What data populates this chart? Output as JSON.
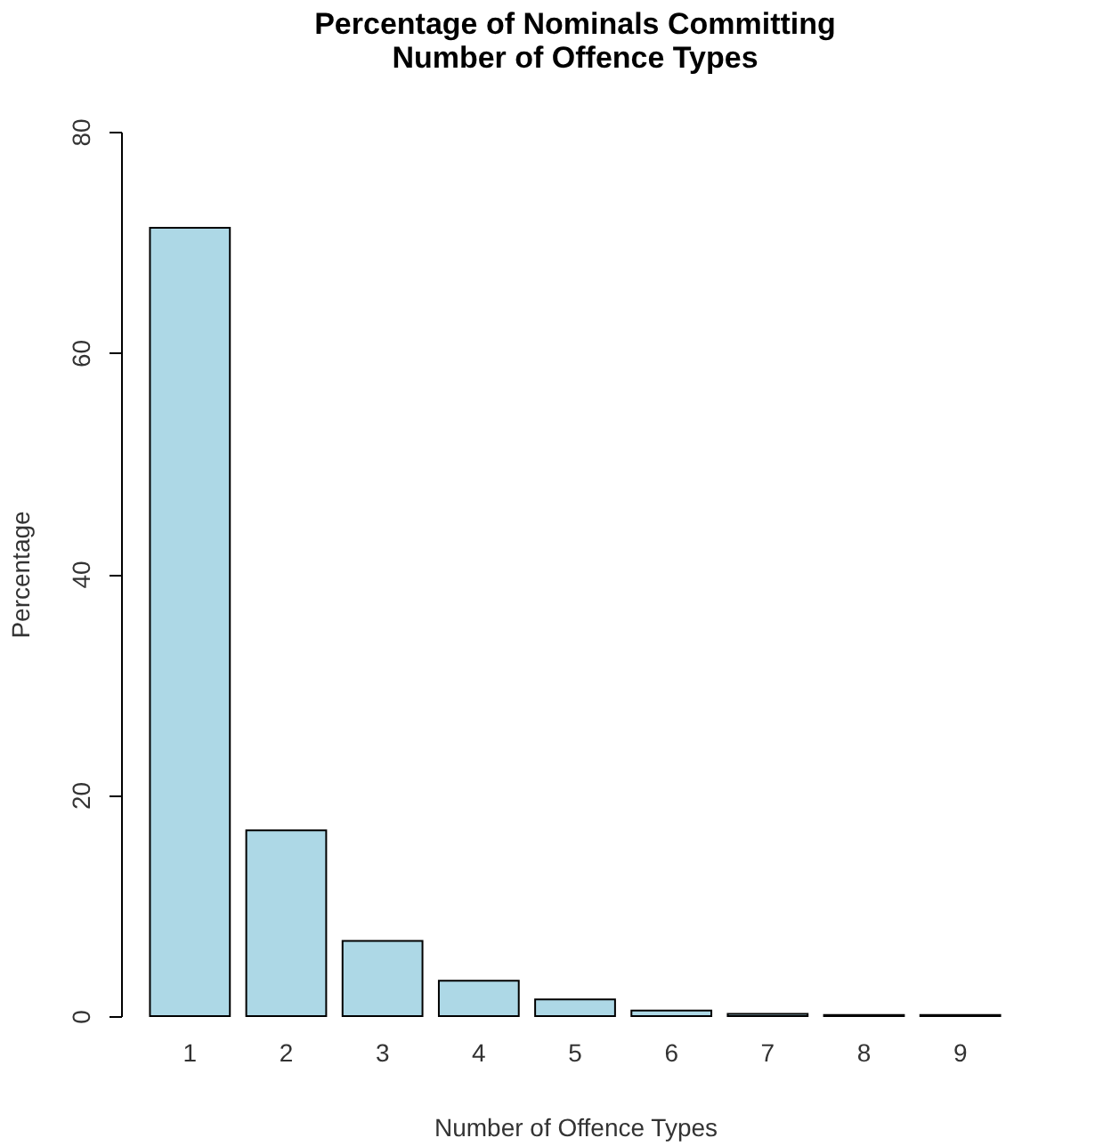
{
  "chart_data": {
    "type": "bar",
    "title": "Percentage of Nominals Committing\nNumber of Offence Types",
    "xlabel": "Number of Offence Types",
    "ylabel": "Percentage",
    "categories": [
      "1",
      "2",
      "3",
      "4",
      "5",
      "6",
      "7",
      "8",
      "9"
    ],
    "values": [
      71.3,
      16.8,
      6.8,
      3.2,
      1.5,
      0.5,
      0.2,
      0.1,
      0.1
    ],
    "color": "#add8e6",
    "ylim": [
      0,
      80
    ],
    "yticks": [
      0,
      20,
      40,
      60,
      80
    ],
    "grid": false
  }
}
